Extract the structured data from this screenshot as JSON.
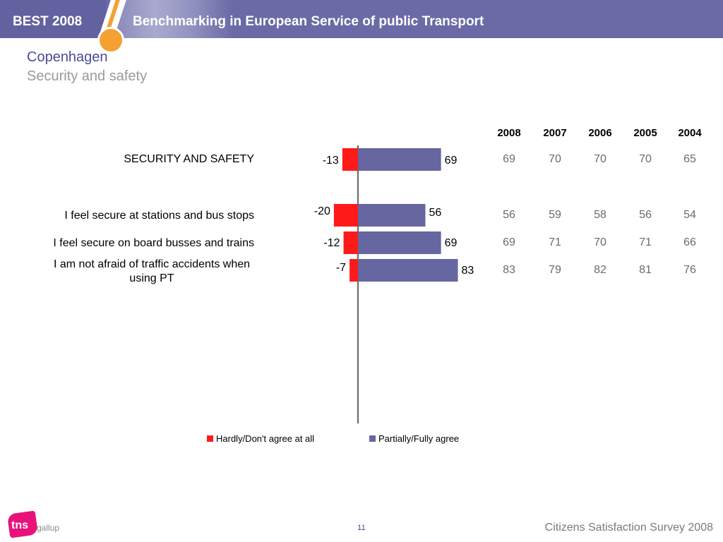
{
  "header": {
    "brand": "BEST 2008",
    "title": "Benchmarking in European Service of public Transport"
  },
  "slide": {
    "title": "Copenhagen",
    "subtitle": "Security and safety"
  },
  "chart_data": {
    "type": "bar",
    "orientation": "horizontal-diverging",
    "categories": [
      "SECURITY AND SAFETY",
      "I feel secure at stations and bus stops",
      "I feel secure on board busses and trains",
      "I am not afraid of traffic accidents when using PT"
    ],
    "series": [
      {
        "name": "Hardly/Don't agree at all",
        "values": [
          -13,
          -20,
          -12,
          -7
        ],
        "color": "#ff1a1a"
      },
      {
        "name": "Partially/Fully agree",
        "values": [
          69,
          56,
          69,
          83
        ],
        "color": "#6666a0"
      }
    ],
    "value_labels": {
      "negative": [
        "-13",
        "-20",
        "-12",
        "-7"
      ],
      "positive": [
        "69",
        "56",
        "69",
        "83"
      ]
    },
    "legend_position": "bottom",
    "grid": false
  },
  "year_table": {
    "years": [
      "2008",
      "2007",
      "2006",
      "2005",
      "2004"
    ],
    "rows": [
      [
        "69",
        "70",
        "70",
        "70",
        "65"
      ],
      [
        "56",
        "59",
        "58",
        "56",
        "54"
      ],
      [
        "69",
        "71",
        "70",
        "71",
        "66"
      ],
      [
        "83",
        "79",
        "82",
        "81",
        "76"
      ]
    ]
  },
  "footer": {
    "logo_text": "tns",
    "logo_sub": "gallup",
    "page_number": "11",
    "survey": "Citizens Satisfaction Survey 2008"
  }
}
